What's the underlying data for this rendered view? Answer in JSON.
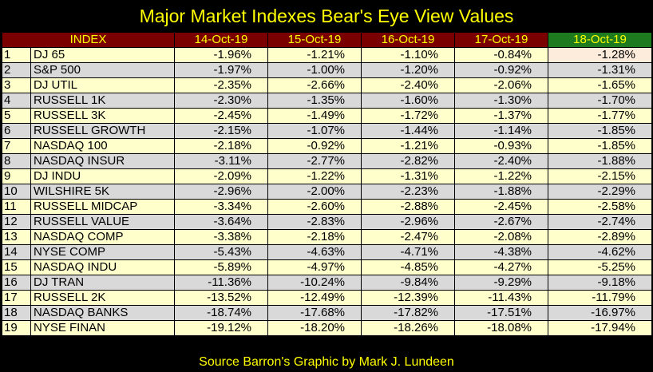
{
  "title": "Major Market Indexes Bear's Eye View Values",
  "table": {
    "headers": [
      "INDEX",
      "14-Oct-19",
      "15-Oct-19",
      "16-Oct-19",
      "17-Oct-19",
      "18-Oct-19"
    ],
    "highlight_header_color": "#1e7a1e",
    "header_color": "#7a0000",
    "rows": [
      {
        "rank": "1",
        "name": "DJ  65",
        "v": [
          "-1.96%",
          "-1.21%",
          "-1.10%",
          "-0.84%",
          "-1.28%"
        ]
      },
      {
        "rank": "2",
        "name": "S&P 500",
        "v": [
          "-1.97%",
          "-1.00%",
          "-1.20%",
          "-0.92%",
          "-1.31%"
        ]
      },
      {
        "rank": "3",
        "name": "DJ  UTIL",
        "v": [
          "-2.35%",
          "-2.66%",
          "-2.40%",
          "-2.06%",
          "-1.65%"
        ]
      },
      {
        "rank": "4",
        "name": "RUSSELL 1K",
        "v": [
          "-2.30%",
          "-1.35%",
          "-1.60%",
          "-1.30%",
          "-1.70%"
        ]
      },
      {
        "rank": "5",
        "name": "RUSSELL 3K",
        "v": [
          "-2.45%",
          "-1.49%",
          "-1.72%",
          "-1.37%",
          "-1.77%"
        ]
      },
      {
        "rank": "6",
        "name": "RUSSELL GROWTH",
        "v": [
          "-2.15%",
          "-1.07%",
          "-1.44%",
          "-1.14%",
          "-1.85%"
        ]
      },
      {
        "rank": "7",
        "name": "NASDAQ 100",
        "v": [
          "-2.18%",
          "-0.92%",
          "-1.21%",
          "-0.93%",
          "-1.85%"
        ]
      },
      {
        "rank": "8",
        "name": "NASDAQ INSUR",
        "v": [
          "-3.11%",
          "-2.77%",
          "-2.82%",
          "-2.40%",
          "-1.88%"
        ]
      },
      {
        "rank": "9",
        "name": "DJ  INDU",
        "v": [
          "-2.09%",
          "-1.22%",
          "-1.31%",
          "-1.22%",
          "-2.15%"
        ]
      },
      {
        "rank": "10",
        "name": "WILSHIRE 5K",
        "v": [
          "-2.96%",
          "-2.00%",
          "-2.23%",
          "-1.88%",
          "-2.29%"
        ]
      },
      {
        "rank": "11",
        "name": "RUSSELL MIDCAP",
        "v": [
          "-3.34%",
          "-2.60%",
          "-2.88%",
          "-2.45%",
          "-2.58%"
        ]
      },
      {
        "rank": "12",
        "name": "RUSSELL VALUE",
        "v": [
          "-3.64%",
          "-2.83%",
          "-2.96%",
          "-2.67%",
          "-2.74%"
        ]
      },
      {
        "rank": "13",
        "name": "NASDAQ COMP",
        "v": [
          "-3.38%",
          "-2.18%",
          "-2.47%",
          "-2.08%",
          "-2.89%"
        ]
      },
      {
        "rank": "14",
        "name": "NYSE COMP",
        "v": [
          "-5.43%",
          "-4.63%",
          "-4.71%",
          "-4.38%",
          "-4.62%"
        ]
      },
      {
        "rank": "15",
        "name": "NASDAQ INDU",
        "v": [
          "-5.89%",
          "-4.97%",
          "-4.85%",
          "-4.27%",
          "-5.25%"
        ]
      },
      {
        "rank": "16",
        "name": "DJ  TRAN",
        "v": [
          "-11.36%",
          "-10.24%",
          "-9.84%",
          "-9.29%",
          "-9.18%"
        ]
      },
      {
        "rank": "17",
        "name": "RUSSELL 2K",
        "v": [
          "-13.52%",
          "-12.49%",
          "-12.39%",
          "-11.43%",
          "-11.79%"
        ]
      },
      {
        "rank": "18",
        "name": "NASDAQ BANKS",
        "v": [
          "-18.74%",
          "-17.68%",
          "-17.82%",
          "-17.51%",
          "-16.97%"
        ]
      },
      {
        "rank": "19",
        "name": "NYSE FINAN",
        "v": [
          "-19.12%",
          "-18.20%",
          "-18.26%",
          "-18.08%",
          "-17.94%"
        ]
      }
    ]
  },
  "source": "Source Barron's   Graphic by Mark J. Lundeen"
}
